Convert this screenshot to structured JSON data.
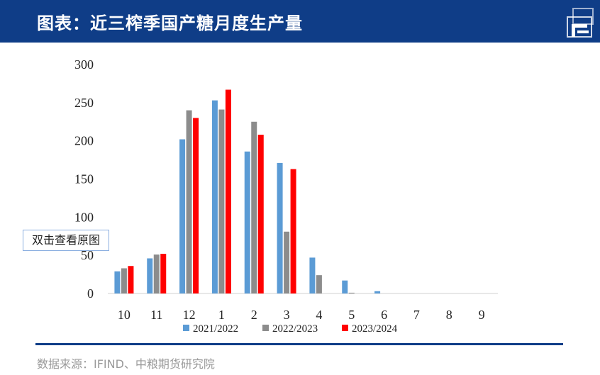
{
  "header": {
    "title": "图表：近三榨季国产糖月度生产量"
  },
  "popup": {
    "label": "双击查看原图"
  },
  "source": {
    "text": "数据来源：IFIND、中粮期货研究院"
  },
  "colors": {
    "header_bg": "#0f3d87",
    "s2021": "#5b9bd5",
    "s2022": "#8c8c8c",
    "s2023": "#ff0000"
  },
  "chart_data": {
    "type": "bar",
    "title": "",
    "xlabel": "",
    "ylabel": "",
    "ylim": [
      0,
      300
    ],
    "yticks": [
      0,
      50,
      100,
      150,
      200,
      250,
      300
    ],
    "grid": false,
    "legend_position": "bottom",
    "categories": [
      "10",
      "11",
      "12",
      "1",
      "2",
      "3",
      "4",
      "5",
      "6",
      "7",
      "8",
      "9"
    ],
    "series": [
      {
        "name": "2021/2022",
        "color": "#5b9bd5",
        "values": [
          29,
          46,
          202,
          253,
          186,
          171,
          47,
          17,
          3,
          0,
          0,
          0
        ]
      },
      {
        "name": "2022/2023",
        "color": "#8c8c8c",
        "values": [
          33,
          51,
          240,
          241,
          225,
          81,
          24,
          1,
          0,
          0,
          0,
          0
        ]
      },
      {
        "name": "2023/2024",
        "color": "#ff0000",
        "values": [
          36,
          52,
          230,
          267,
          208,
          163,
          null,
          null,
          null,
          null,
          null,
          null
        ]
      }
    ]
  }
}
